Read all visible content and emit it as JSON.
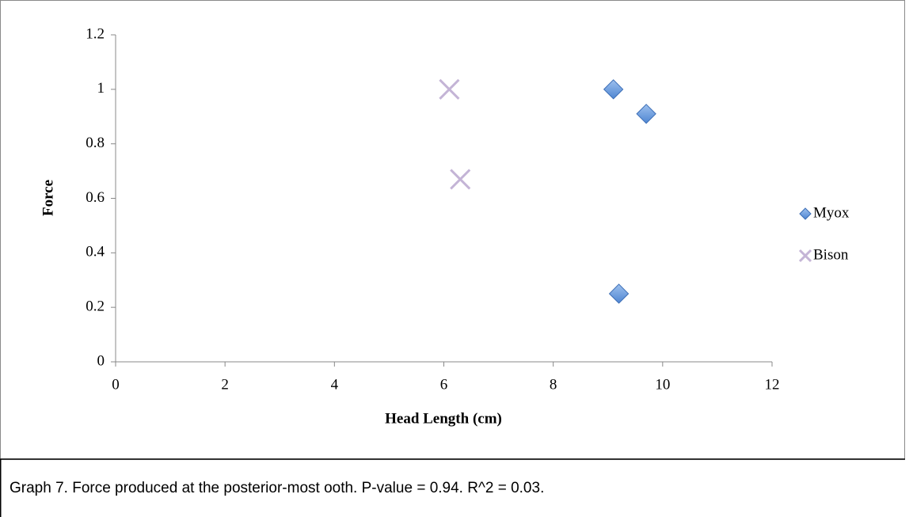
{
  "chart_data": {
    "type": "scatter",
    "xlabel": "Head Length (cm)",
    "ylabel": "Force",
    "series": [
      {
        "name": "Myox",
        "color": "#5b8fd6",
        "marker": "diamond",
        "x": [
          9.1,
          9.7,
          9.2
        ],
        "values": [
          1.0,
          0.91,
          0.25
        ]
      },
      {
        "name": "Bison",
        "color": "#c4b4d6",
        "marker": "x",
        "x": [
          6.1,
          6.3
        ],
        "values": [
          1.0,
          0.67
        ]
      }
    ],
    "xlim": [
      0,
      12
    ],
    "xticks": [
      0,
      2,
      4,
      6,
      8,
      10,
      12
    ],
    "ylim": [
      0,
      1.2
    ],
    "yticks": [
      0,
      0.2,
      0.4,
      0.6,
      0.8,
      1,
      1.2
    ],
    "legend": "right"
  },
  "caption": "Graph 7.  Force produced at the posterior-most ooth. P-value = 0.94. R^2 = 0.03."
}
